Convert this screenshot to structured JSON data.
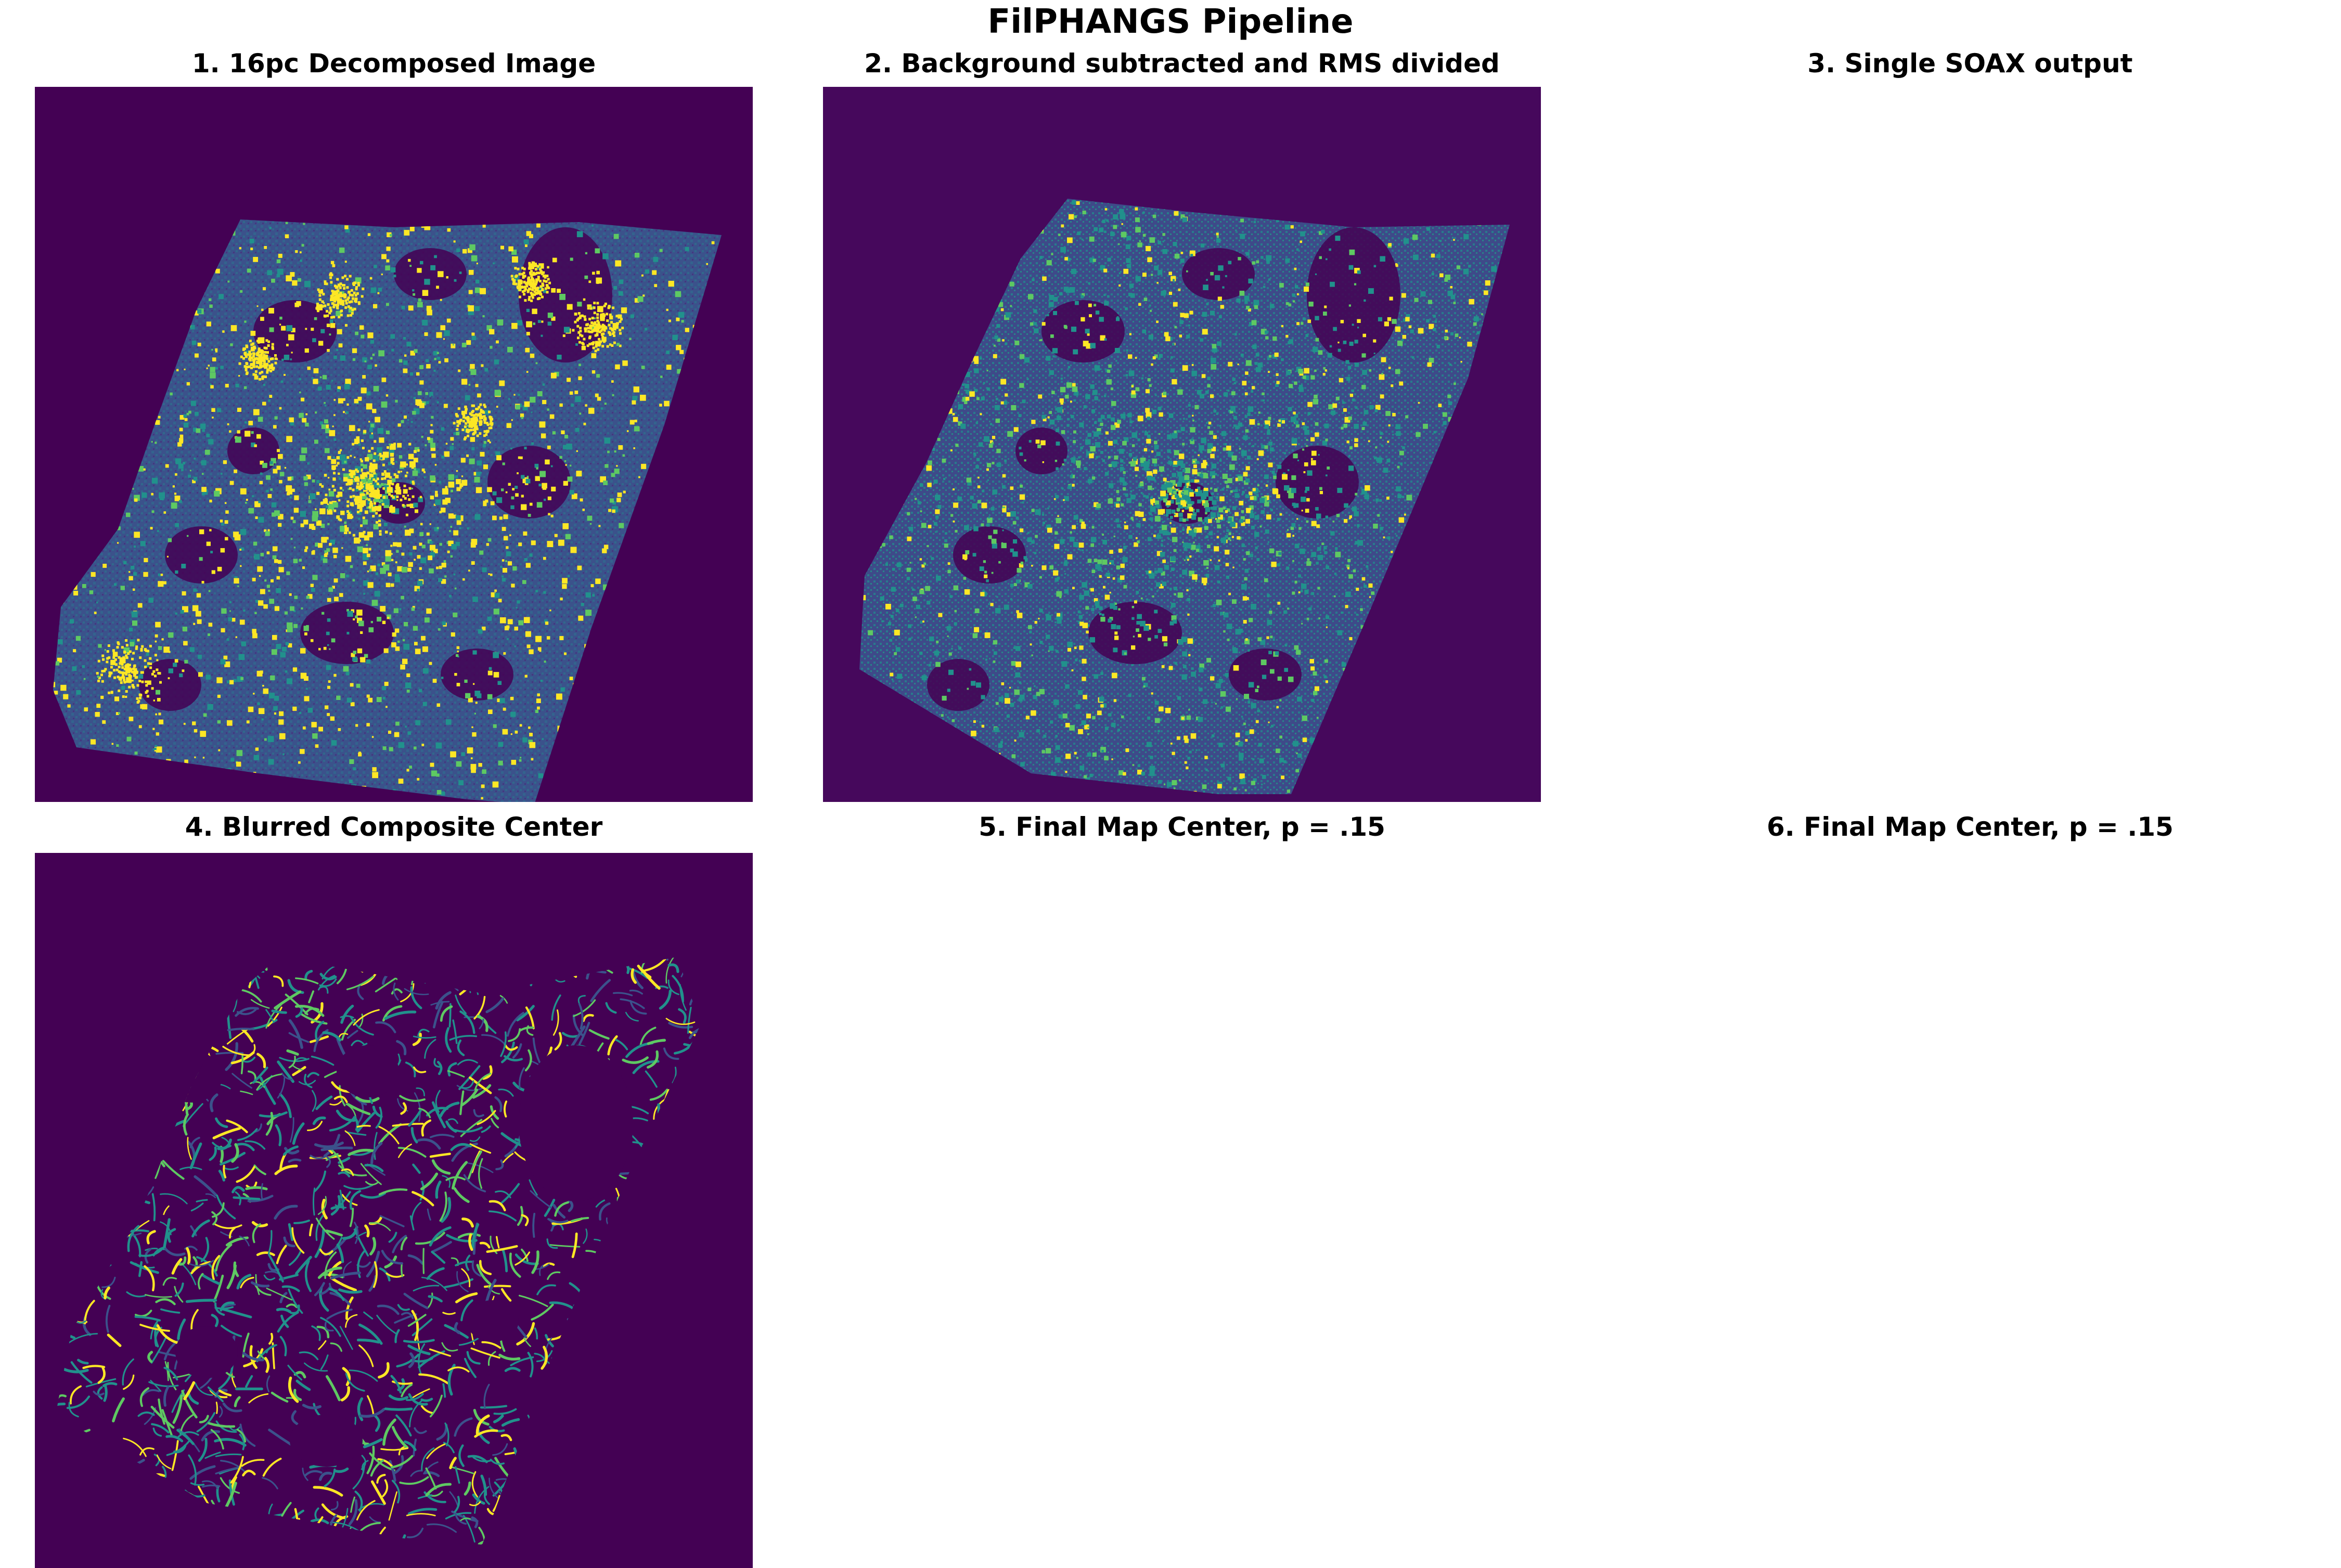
{
  "figure": {
    "title": "FilPHANGS Pipeline"
  },
  "panels": [
    {
      "title": "1. 16pc Decomposed Image",
      "image": "decomposed-galaxy"
    },
    {
      "title": "2. Background subtracted and RMS divided",
      "image": "background-subtracted-galaxy"
    },
    {
      "title": "3. Single SOAX output",
      "image": ""
    },
    {
      "title": "4. Blurred Composite Center",
      "image": "filament-composite"
    },
    {
      "title": "5. Final Map Center, p = .15",
      "image": ""
    },
    {
      "title": "6. Final Map Center, p = .15",
      "image": ""
    }
  ],
  "colors": {
    "background_panel1": "#440154",
    "background_panel2": "#46085c",
    "disk_blue": "#3b528b",
    "disk_teal": "#21918c",
    "bright_yellow": "#fde725",
    "green": "#5ec962"
  }
}
